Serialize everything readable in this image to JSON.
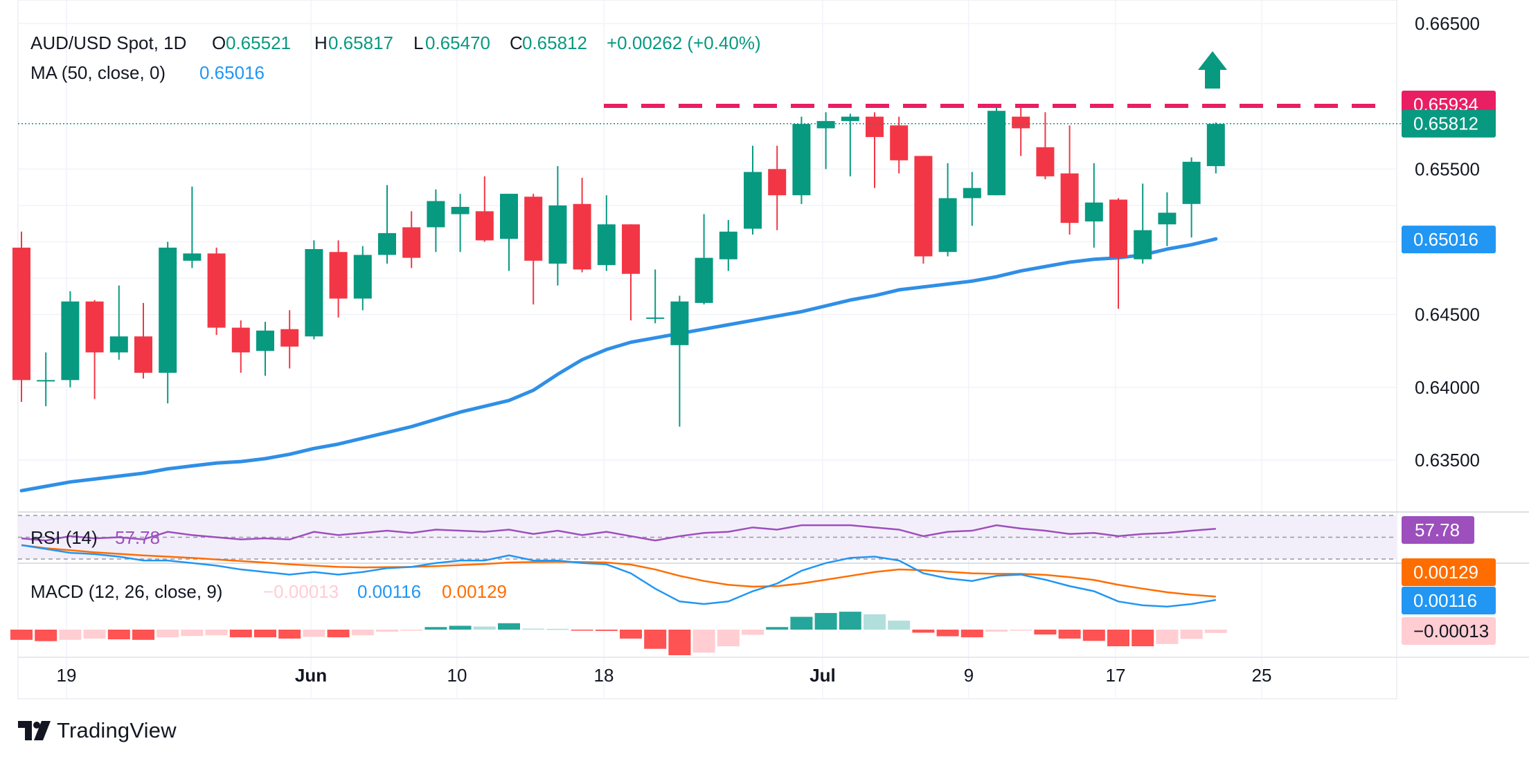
{
  "header": {
    "symbol": "AUD/USD Spot, 1D",
    "o_label": "O",
    "o_value": "0.65521",
    "h_label": "H",
    "h_value": "0.65817",
    "l_label": "L",
    "l_value": "0.65470",
    "c_label": "C",
    "c_value": "0.65812",
    "change": "+0.00262 (+0.40%)",
    "ma_label": "MA (50, close, 0)",
    "ma_value": "0.65016"
  },
  "brand": {
    "name": "TradingView"
  },
  "colors": {
    "up": "#089981",
    "down": "#f23645",
    "ma": "#2962ff",
    "ma_line": "#2f8fe6",
    "resistance": "#e91e63",
    "rsi": "#9c4fbd",
    "macd": "#2196f3",
    "signal": "#ff6d00",
    "hist_up_strong": "#26a69a",
    "hist_up_weak": "#b2dfdb",
    "hist_down_strong": "#ff5252",
    "hist_down_weak": "#ffcdd2",
    "grid": "#f0f3fa",
    "text": "#131722"
  },
  "chart_data": {
    "type": "candlestick",
    "title": "AUD/USD Spot, 1D",
    "price_axis": {
      "ticks": [
        "0.66500",
        "0.65500",
        "0.65000",
        "0.64500",
        "0.64000",
        "0.63500"
      ],
      "range": [
        0.6322,
        0.6662
      ]
    },
    "time_axis": {
      "labels": [
        "19",
        "Jun",
        "10",
        "18",
        "Jul",
        "9",
        "17",
        "25"
      ]
    },
    "price_labels": {
      "resistance": "0.65934",
      "last": "0.65812",
      "ma": "0.65016"
    },
    "resistance_level": 0.65934,
    "last_price": 0.65812,
    "candles": [
      {
        "o": 0.6496,
        "h": 0.6507,
        "l": 0.639,
        "c": 0.6405
      },
      {
        "o": 0.6405,
        "h": 0.6424,
        "l": 0.6387,
        "c": 0.6405
      },
      {
        "o": 0.6405,
        "h": 0.6466,
        "l": 0.64,
        "c": 0.6459
      },
      {
        "o": 0.6459,
        "h": 0.646,
        "l": 0.6392,
        "c": 0.6424
      },
      {
        "o": 0.6424,
        "h": 0.647,
        "l": 0.6419,
        "c": 0.6435
      },
      {
        "o": 0.6435,
        "h": 0.6458,
        "l": 0.6406,
        "c": 0.641
      },
      {
        "o": 0.641,
        "h": 0.65,
        "l": 0.6389,
        "c": 0.6496
      },
      {
        "o": 0.6487,
        "h": 0.6538,
        "l": 0.6482,
        "c": 0.6492
      },
      {
        "o": 0.6492,
        "h": 0.6496,
        "l": 0.6436,
        "c": 0.6441
      },
      {
        "o": 0.6441,
        "h": 0.6446,
        "l": 0.641,
        "c": 0.6424
      },
      {
        "o": 0.6425,
        "h": 0.6445,
        "l": 0.6408,
        "c": 0.6439
      },
      {
        "o": 0.644,
        "h": 0.6453,
        "l": 0.6413,
        "c": 0.6428
      },
      {
        "o": 0.6435,
        "h": 0.6501,
        "l": 0.6433,
        "c": 0.6495
      },
      {
        "o": 0.6493,
        "h": 0.6501,
        "l": 0.6448,
        "c": 0.6461
      },
      {
        "o": 0.6461,
        "h": 0.6497,
        "l": 0.6453,
        "c": 0.6491
      },
      {
        "o": 0.6491,
        "h": 0.6539,
        "l": 0.6485,
        "c": 0.6506
      },
      {
        "o": 0.651,
        "h": 0.6521,
        "l": 0.6482,
        "c": 0.6489
      },
      {
        "o": 0.651,
        "h": 0.6536,
        "l": 0.6493,
        "c": 0.6528
      },
      {
        "o": 0.6519,
        "h": 0.6533,
        "l": 0.6493,
        "c": 0.6524
      },
      {
        "o": 0.6521,
        "h": 0.6545,
        "l": 0.65,
        "c": 0.6501
      },
      {
        "o": 0.6502,
        "h": 0.6533,
        "l": 0.648,
        "c": 0.6533
      },
      {
        "o": 0.6531,
        "h": 0.6533,
        "l": 0.6457,
        "c": 0.6487
      },
      {
        "o": 0.6485,
        "h": 0.6552,
        "l": 0.647,
        "c": 0.6525
      },
      {
        "o": 0.6526,
        "h": 0.6544,
        "l": 0.6479,
        "c": 0.6481
      },
      {
        "o": 0.6484,
        "h": 0.6532,
        "l": 0.648,
        "c": 0.6512
      },
      {
        "o": 0.6512,
        "h": 0.6512,
        "l": 0.6446,
        "c": 0.6478
      },
      {
        "o": 0.6448,
        "h": 0.6481,
        "l": 0.6444,
        "c": 0.6448
      },
      {
        "o": 0.6429,
        "h": 0.6463,
        "l": 0.6373,
        "c": 0.6459
      },
      {
        "o": 0.6458,
        "h": 0.6519,
        "l": 0.6457,
        "c": 0.6489
      },
      {
        "o": 0.6488,
        "h": 0.6515,
        "l": 0.648,
        "c": 0.6507
      },
      {
        "o": 0.6509,
        "h": 0.6566,
        "l": 0.6505,
        "c": 0.6548
      },
      {
        "o": 0.655,
        "h": 0.6566,
        "l": 0.6508,
        "c": 0.6532
      },
      {
        "o": 0.6532,
        "h": 0.6586,
        "l": 0.6526,
        "c": 0.6581
      },
      {
        "o": 0.6578,
        "h": 0.6589,
        "l": 0.655,
        "c": 0.6583
      },
      {
        "o": 0.6583,
        "h": 0.6588,
        "l": 0.6545,
        "c": 0.6586
      },
      {
        "o": 0.6586,
        "h": 0.6589,
        "l": 0.6537,
        "c": 0.6572
      },
      {
        "o": 0.658,
        "h": 0.6586,
        "l": 0.6547,
        "c": 0.6556
      },
      {
        "o": 0.6559,
        "h": 0.6559,
        "l": 0.6485,
        "c": 0.649
      },
      {
        "o": 0.6493,
        "h": 0.6554,
        "l": 0.649,
        "c": 0.653
      },
      {
        "o": 0.653,
        "h": 0.6548,
        "l": 0.6511,
        "c": 0.6537
      },
      {
        "o": 0.6532,
        "h": 0.6594,
        "l": 0.6532,
        "c": 0.659
      },
      {
        "o": 0.6586,
        "h": 0.6594,
        "l": 0.6559,
        "c": 0.6578
      },
      {
        "o": 0.6565,
        "h": 0.6589,
        "l": 0.6543,
        "c": 0.6545
      },
      {
        "o": 0.6547,
        "h": 0.658,
        "l": 0.6505,
        "c": 0.6513
      },
      {
        "o": 0.6514,
        "h": 0.6554,
        "l": 0.6496,
        "c": 0.6527
      },
      {
        "o": 0.6529,
        "h": 0.653,
        "l": 0.6454,
        "c": 0.6489
      },
      {
        "o": 0.6488,
        "h": 0.654,
        "l": 0.6485,
        "c": 0.6508
      },
      {
        "o": 0.6512,
        "h": 0.6534,
        "l": 0.6497,
        "c": 0.652
      },
      {
        "o": 0.6526,
        "h": 0.6558,
        "l": 0.6503,
        "c": 0.6555
      },
      {
        "o": 0.6552,
        "h": 0.6582,
        "l": 0.6547,
        "c": 0.6581
      }
    ],
    "ma": {
      "name": "MA (50, close, 0)",
      "values": [
        0.6329,
        0.6332,
        0.6335,
        0.6337,
        0.6339,
        0.6341,
        0.6344,
        0.6346,
        0.6348,
        0.6349,
        0.6351,
        0.6354,
        0.6358,
        0.6361,
        0.6365,
        0.6369,
        0.6373,
        0.6378,
        0.6383,
        0.6387,
        0.6391,
        0.6398,
        0.6409,
        0.6419,
        0.6426,
        0.6431,
        0.6434,
        0.6437,
        0.644,
        0.6443,
        0.6446,
        0.6449,
        0.6452,
        0.6456,
        0.646,
        0.6463,
        0.6467,
        0.6469,
        0.6471,
        0.6473,
        0.6476,
        0.648,
        0.6483,
        0.6486,
        0.6488,
        0.6489,
        0.6491,
        0.6495,
        0.6498,
        0.6502
      ]
    },
    "rsi": {
      "name": "RSI (14)",
      "label": "RSI (14)",
      "value": "57.78",
      "levels": [
        70,
        50,
        30
      ],
      "values": [
        49,
        47,
        51,
        49,
        50,
        48,
        55,
        52,
        50,
        48,
        49,
        48,
        55,
        52,
        54,
        56,
        54,
        57,
        56,
        55,
        57,
        53,
        56,
        52,
        55,
        51,
        47,
        51,
        54,
        55,
        59,
        57,
        61,
        61,
        61,
        59,
        57,
        51,
        55,
        56,
        61,
        58,
        56,
        53,
        54,
        51,
        53,
        54,
        56,
        57.78
      ]
    },
    "macd": {
      "name": "MACD (12, 26, close, 9)",
      "label": "MACD (12, 26, close, 9)",
      "hist_value": "−0.00013",
      "macd_value": "0.00116",
      "signal_value": "0.00129",
      "axis_labels": {
        "signal": "0.00129",
        "macd": "0.00116",
        "hist": "−0.00013"
      },
      "macd_line": [
        0.0033,
        0.00315,
        0.003,
        0.00295,
        0.00285,
        0.0027,
        0.0027,
        0.0026,
        0.0025,
        0.00235,
        0.00225,
        0.00215,
        0.00225,
        0.00215,
        0.00225,
        0.0024,
        0.00245,
        0.0026,
        0.0027,
        0.0027,
        0.0029,
        0.0027,
        0.0027,
        0.0026,
        0.00255,
        0.0022,
        0.0016,
        0.0011,
        0.001,
        0.0011,
        0.0015,
        0.0018,
        0.0023,
        0.0026,
        0.0028,
        0.00285,
        0.0027,
        0.0022,
        0.002,
        0.0019,
        0.0021,
        0.00215,
        0.00195,
        0.0017,
        0.0015,
        0.0011,
        0.00095,
        0.0009,
        0.001,
        0.00116
      ],
      "signal_line": [
        0.0033,
        0.00318,
        0.0031,
        0.00302,
        0.00296,
        0.0029,
        0.00285,
        0.0028,
        0.00274,
        0.00268,
        0.00262,
        0.00255,
        0.0025,
        0.00245,
        0.00243,
        0.00244,
        0.00245,
        0.00248,
        0.00252,
        0.00256,
        0.00262,
        0.00264,
        0.00265,
        0.00264,
        0.00262,
        0.00254,
        0.00235,
        0.0021,
        0.0019,
        0.00175,
        0.00168,
        0.0017,
        0.0018,
        0.00195,
        0.0021,
        0.00225,
        0.00235,
        0.00232,
        0.00226,
        0.0022,
        0.00218,
        0.00218,
        0.00214,
        0.00205,
        0.00194,
        0.00175,
        0.0016,
        0.00146,
        0.00136,
        0.00129
      ],
      "histogram": [
        -0.0004,
        -0.00045,
        -0.0004,
        -0.00035,
        -0.00038,
        -0.0004,
        -0.0003,
        -0.00025,
        -0.00022,
        -0.0003,
        -0.0003,
        -0.00035,
        -0.00028,
        -0.0003,
        -0.00022,
        -8e-05,
        -2e-05,
        0.0001,
        0.00015,
        0.00012,
        0.00025,
        4e-05,
        3e-05,
        -4e-05,
        -5e-05,
        -0.00035,
        -0.00075,
        -0.001,
        -0.0009,
        -0.00065,
        -0.0002,
        0.0001,
        0.0005,
        0.00065,
        0.0007,
        0.0006,
        0.00035,
        -0.00012,
        -0.00026,
        -0.0003,
        -8e-05,
        -3e-05,
        -0.00019,
        -0.00035,
        -0.00044,
        -0.00065,
        -0.00065,
        -0.00056,
        -0.00036,
        -0.00013
      ]
    }
  }
}
